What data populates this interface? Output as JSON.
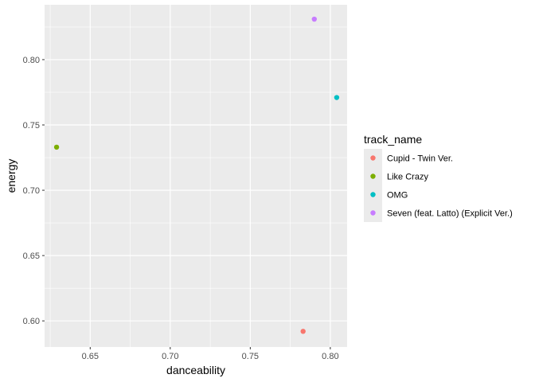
{
  "chart_data": {
    "type": "scatter",
    "xlabel": "danceability",
    "ylabel": "energy",
    "xlim": [
      0.6215,
      0.8105
    ],
    "ylim": [
      0.58,
      0.842
    ],
    "x_ticks": [
      0.65,
      0.7,
      0.75,
      0.8
    ],
    "x_tick_labels": [
      "0.65",
      "0.70",
      "0.75",
      "0.80"
    ],
    "y_ticks": [
      0.6,
      0.65,
      0.7,
      0.75,
      0.8
    ],
    "y_tick_labels": [
      "0.60",
      "0.65",
      "0.70",
      "0.75",
      "0.80"
    ],
    "grid": true,
    "background": "#ebebeb",
    "legend": {
      "title": "track_name",
      "position": "right"
    },
    "series": [
      {
        "name": "Cupid - Twin Ver.",
        "color": "#f8766d",
        "points": [
          {
            "x": 0.783,
            "y": 0.592
          }
        ]
      },
      {
        "name": "Like Crazy",
        "color": "#7cae00",
        "points": [
          {
            "x": 0.629,
            "y": 0.733
          }
        ]
      },
      {
        "name": "OMG",
        "color": "#00bfc4",
        "points": [
          {
            "x": 0.804,
            "y": 0.771
          }
        ]
      },
      {
        "name": "Seven (feat. Latto) (Explicit Ver.)",
        "color": "#c77cff",
        "points": [
          {
            "x": 0.79,
            "y": 0.831
          }
        ]
      }
    ]
  }
}
